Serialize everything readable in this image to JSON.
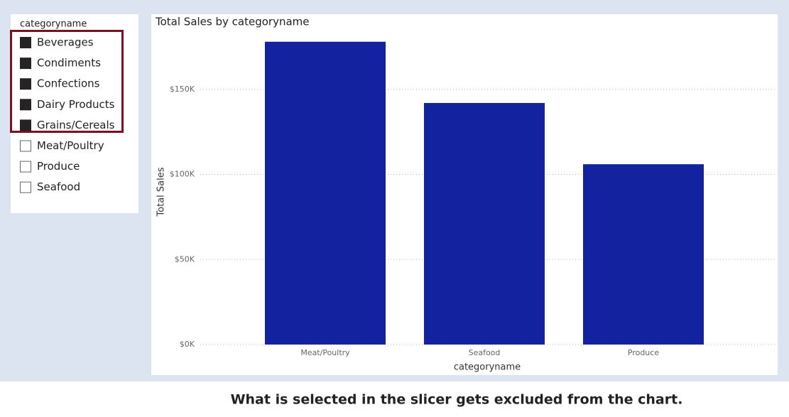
{
  "slicer": {
    "title": "categoryname",
    "items": [
      {
        "label": "Beverages",
        "selected": true
      },
      {
        "label": "Condiments",
        "selected": true
      },
      {
        "label": "Confections",
        "selected": true
      },
      {
        "label": "Dairy Products",
        "selected": true
      },
      {
        "label": "Grains/Cereals",
        "selected": true
      },
      {
        "label": "Meat/Poultry",
        "selected": false
      },
      {
        "label": "Produce",
        "selected": false
      },
      {
        "label": "Seafood",
        "selected": false
      }
    ]
  },
  "chart_data": {
    "type": "bar",
    "title": "Total Sales by categoryname",
    "x_label": "categoryname",
    "y_label": "Total Sales",
    "categories": [
      "Meat/Poultry",
      "Seafood",
      "Produce"
    ],
    "values": [
      178000,
      142000,
      106000
    ],
    "color": "#13239f",
    "ylim": [
      0,
      185000
    ],
    "yticks": [
      {
        "value": 0,
        "label": "$0K"
      },
      {
        "value": 50000,
        "label": "$50K"
      },
      {
        "value": 100000,
        "label": "$100K"
      },
      {
        "value": 150000,
        "label": "$150K"
      }
    ],
    "grid": true
  },
  "caption": "What is selected in the slicer gets excluded from the chart."
}
